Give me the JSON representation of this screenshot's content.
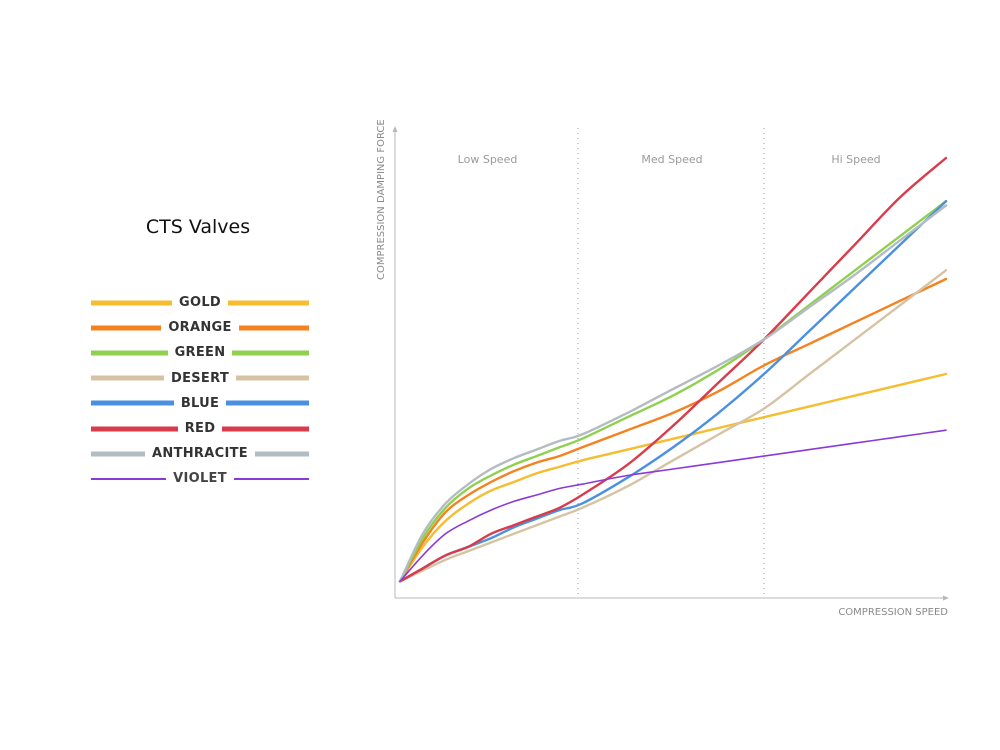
{
  "title": "CTS Valves",
  "chart_data": {
    "type": "line",
    "title": "CTS Valves",
    "xlabel": "COMPRESSION SPEED",
    "ylabel": "COMPRESSION DAMPING FORCE",
    "xlim": [
      0,
      3
    ],
    "ylim": [
      0,
      1
    ],
    "regions": [
      {
        "label": "Low Speed",
        "x_start": 0,
        "x_end": 1
      },
      {
        "label": "Med Speed",
        "x_start": 1,
        "x_end": 2
      },
      {
        "label": "Hi Speed",
        "x_start": 2,
        "x_end": 3
      }
    ],
    "legend_position": "left",
    "grid": false,
    "x": [
      0,
      0.125,
      0.25,
      0.375,
      0.5,
      0.625,
      0.75,
      0.875,
      1,
      1.25,
      1.5,
      1.75,
      2,
      2.25,
      2.5,
      2.75,
      3
    ],
    "series": [
      {
        "name": "GOLD",
        "color": "#f5bd2f",
        "width": 5,
        "values": [
          0.02,
          0.1,
          0.16,
          0.2,
          0.23,
          0.25,
          0.27,
          0.285,
          0.3,
          0.325,
          0.35,
          0.375,
          0.4,
          0.425,
          0.45,
          0.475,
          0.5
        ]
      },
      {
        "name": "ORANGE",
        "color": "#f5821f",
        "width": 5,
        "values": [
          0.02,
          0.11,
          0.18,
          0.22,
          0.25,
          0.275,
          0.295,
          0.31,
          0.33,
          0.37,
          0.41,
          0.46,
          0.52,
          0.57,
          0.62,
          0.67,
          0.72
        ]
      },
      {
        "name": "GREEN",
        "color": "#8fd14f",
        "width": 5,
        "values": [
          0.02,
          0.12,
          0.19,
          0.235,
          0.265,
          0.29,
          0.31,
          0.33,
          0.35,
          0.4,
          0.45,
          0.51,
          0.58,
          0.66,
          0.74,
          0.82,
          0.9
        ]
      },
      {
        "name": "DESERT",
        "color": "#d6c3a3",
        "width": 5,
        "values": [
          0.02,
          0.045,
          0.07,
          0.09,
          0.11,
          0.13,
          0.15,
          0.17,
          0.19,
          0.24,
          0.3,
          0.36,
          0.42,
          0.5,
          0.58,
          0.66,
          0.74
        ]
      },
      {
        "name": "BLUE",
        "color": "#4a90e2",
        "width": 5,
        "values": [
          0.02,
          0.05,
          0.08,
          0.1,
          0.12,
          0.145,
          0.165,
          0.185,
          0.2,
          0.26,
          0.33,
          0.41,
          0.5,
          0.6,
          0.7,
          0.8,
          0.9
        ]
      },
      {
        "name": "RED",
        "color": "#d93b4a",
        "width": 5,
        "values": [
          0.02,
          0.05,
          0.08,
          0.1,
          0.13,
          0.15,
          0.17,
          0.19,
          0.22,
          0.29,
          0.38,
          0.48,
          0.58,
          0.69,
          0.8,
          0.91,
          1.0
        ]
      },
      {
        "name": "ANTHRACITE",
        "color": "#b3bcc2",
        "width": 5,
        "values": [
          0.02,
          0.13,
          0.2,
          0.245,
          0.28,
          0.305,
          0.325,
          0.345,
          0.36,
          0.41,
          0.465,
          0.52,
          0.58,
          0.655,
          0.73,
          0.81,
          0.89
        ]
      },
      {
        "name": "VIOLET",
        "color": "#8a3ad6",
        "width": 2,
        "values": [
          0.02,
          0.08,
          0.13,
          0.16,
          0.185,
          0.205,
          0.22,
          0.235,
          0.245,
          0.265,
          0.28,
          0.295,
          0.31,
          0.325,
          0.34,
          0.355,
          0.37
        ]
      }
    ]
  }
}
